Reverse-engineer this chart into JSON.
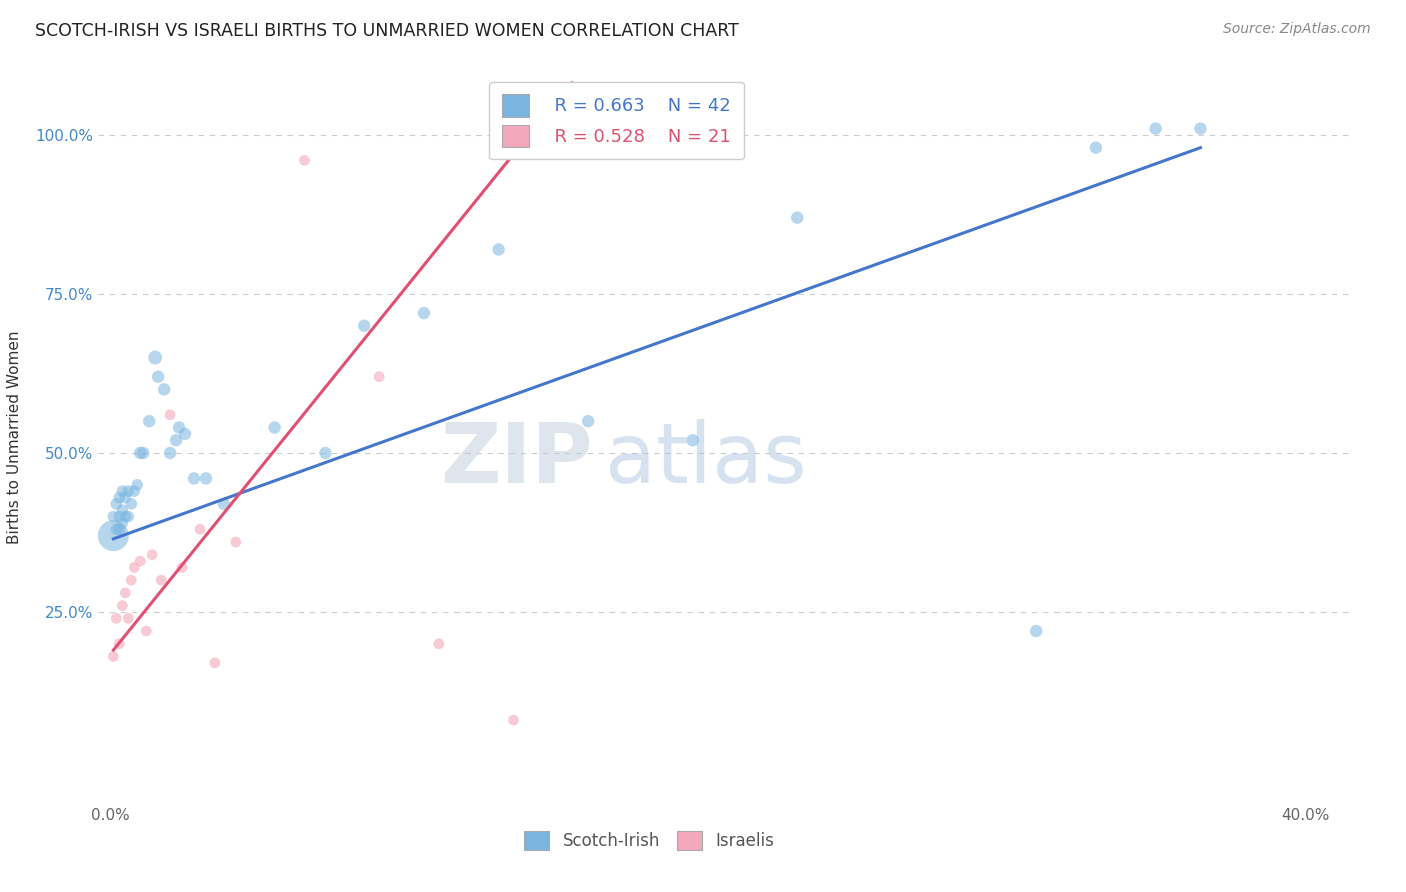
{
  "title": "SCOTCH-IRISH VS ISRAELI BIRTHS TO UNMARRIED WOMEN CORRELATION CHART",
  "source": "Source: ZipAtlas.com",
  "ylabel_label": "Births to Unmarried Women",
  "xlim": [
    -0.004,
    0.415
  ],
  "ylim": [
    -0.05,
    1.1
  ],
  "blue_color": "#7ab5e0",
  "pink_color": "#f4a8bc",
  "blue_line_color": "#4477cc",
  "pink_line_color": "#e05070",
  "grid_color": "#cccccc",
  "background_color": "#ffffff",
  "watermark_zip": "ZIP",
  "watermark_atlas": "atlas",
  "legend_r_blue": "R = 0.663",
  "legend_n_blue": "N = 42",
  "legend_r_pink": "R = 0.528",
  "legend_n_pink": "N = 21",
  "scotch_irish_x": [
    0.001,
    0.001,
    0.002,
    0.002,
    0.003,
    0.003,
    0.003,
    0.004,
    0.004,
    0.004,
    0.005,
    0.005,
    0.006,
    0.006,
    0.007,
    0.008,
    0.009,
    0.01,
    0.011,
    0.013,
    0.015,
    0.016,
    0.018,
    0.02,
    0.022,
    0.023,
    0.025,
    0.028,
    0.032,
    0.038,
    0.055,
    0.072,
    0.085,
    0.105,
    0.13,
    0.16,
    0.195,
    0.23,
    0.31,
    0.33,
    0.35,
    0.365
  ],
  "scotch_irish_y": [
    0.37,
    0.4,
    0.38,
    0.42,
    0.38,
    0.4,
    0.43,
    0.39,
    0.41,
    0.44,
    0.4,
    0.43,
    0.4,
    0.44,
    0.42,
    0.44,
    0.45,
    0.5,
    0.5,
    0.55,
    0.65,
    0.62,
    0.6,
    0.5,
    0.52,
    0.54,
    0.53,
    0.46,
    0.46,
    0.42,
    0.54,
    0.5,
    0.7,
    0.72,
    0.82,
    0.55,
    0.52,
    0.87,
    0.22,
    0.98,
    1.01,
    1.01
  ],
  "scotch_irish_sizes": [
    500,
    70,
    70,
    70,
    70,
    70,
    70,
    70,
    70,
    70,
    70,
    70,
    70,
    70,
    70,
    70,
    70,
    80,
    80,
    80,
    100,
    80,
    80,
    80,
    80,
    80,
    80,
    80,
    80,
    80,
    80,
    80,
    80,
    80,
    80,
    80,
    80,
    80,
    80,
    80,
    80,
    80
  ],
  "israelis_x": [
    0.001,
    0.002,
    0.003,
    0.004,
    0.005,
    0.006,
    0.007,
    0.008,
    0.01,
    0.012,
    0.014,
    0.017,
    0.02,
    0.024,
    0.03,
    0.035,
    0.042,
    0.065,
    0.09,
    0.11,
    0.135
  ],
  "israelis_y": [
    0.18,
    0.24,
    0.2,
    0.26,
    0.28,
    0.24,
    0.3,
    0.32,
    0.33,
    0.22,
    0.34,
    0.3,
    0.56,
    0.32,
    0.38,
    0.17,
    0.36,
    0.96,
    0.62,
    0.2,
    0.08
  ],
  "israelis_sizes": [
    60,
    60,
    60,
    60,
    60,
    60,
    60,
    60,
    60,
    60,
    60,
    60,
    60,
    60,
    60,
    60,
    60,
    60,
    60,
    60,
    60
  ],
  "blue_line_x0": 0.001,
  "blue_line_x1": 0.365,
  "blue_line_y0": 0.365,
  "blue_line_y1": 0.98,
  "pink_line_x0": 0.001,
  "pink_line_x1": 0.135,
  "pink_line_y0": 0.19,
  "pink_line_y1": 0.97
}
